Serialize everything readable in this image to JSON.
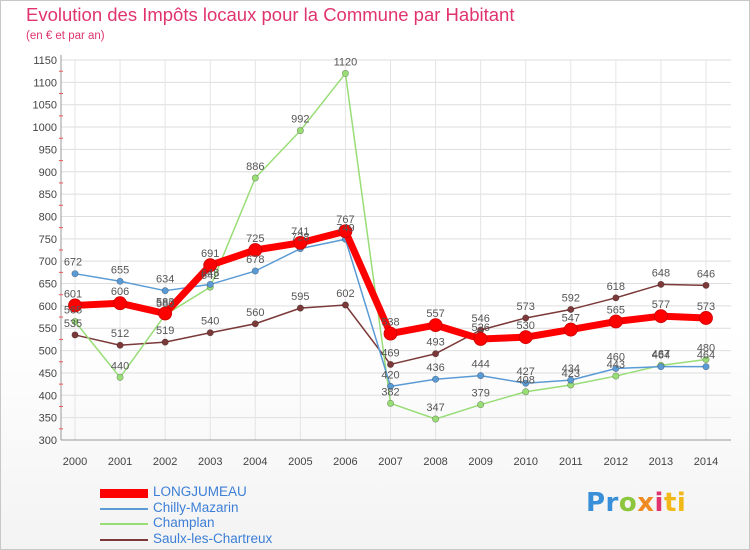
{
  "chart_data": {
    "type": "line",
    "title": "Evolution des Impôts locaux pour la Commune par Habitant",
    "subtitle": "(en € et par an)",
    "xlabel": "",
    "ylabel": "",
    "categories": [
      "2000",
      "2001",
      "2002",
      "2003",
      "2004",
      "2005",
      "2006",
      "2007",
      "2008",
      "2009",
      "2010",
      "2011",
      "2012",
      "2013",
      "2014"
    ],
    "ylim": [
      300,
      1150
    ],
    "yticks": [
      300,
      350,
      400,
      450,
      500,
      550,
      600,
      650,
      700,
      750,
      800,
      850,
      900,
      950,
      1000,
      1050,
      1100,
      1150
    ],
    "series": [
      {
        "name": "LONGJUMEAU",
        "color": "#ff0000",
        "values": [
          601,
          606,
          583,
          691,
          725,
          741,
          767,
          538,
          557,
          526,
          530,
          547,
          565,
          577,
          573
        ]
      },
      {
        "name": "Chilly-Mazarin",
        "color": "#5b9bd5",
        "values": [
          672,
          655,
          634,
          648,
          678,
          728,
          749,
          420,
          436,
          444,
          427,
          434,
          460,
          464,
          464
        ]
      },
      {
        "name": "Champlan",
        "color": "#99dd77",
        "values": [
          565,
          440,
          580,
          642,
          886,
          992,
          1120,
          382,
          347,
          379,
          408,
          423,
          443,
          467,
          480
        ]
      },
      {
        "name": "Saulx-les-Chartreux",
        "color": "#7b3939",
        "values": [
          535,
          512,
          519,
          540,
          560,
          595,
          602,
          469,
          493,
          546,
          573,
          592,
          618,
          648,
          646
        ]
      }
    ]
  },
  "logo": {
    "p1": "Pr",
    "p2": "o",
    "p3": "x",
    "p4": "i",
    "p5": "ti"
  }
}
